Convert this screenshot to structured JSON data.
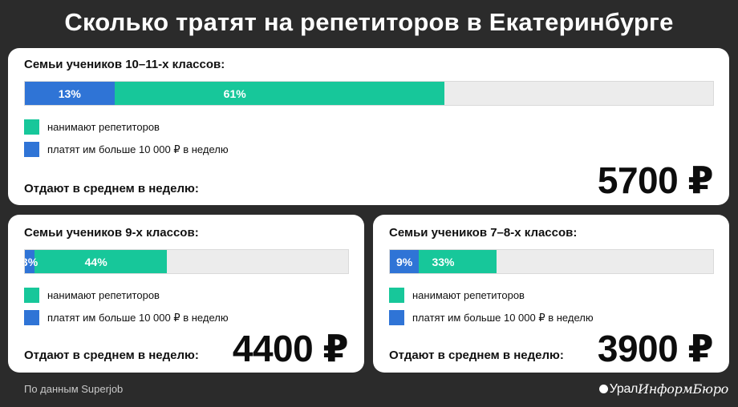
{
  "header": {
    "title": "Сколько тратят на репетиторов в Екатеринбурге"
  },
  "colors": {
    "hire": "#17c79a",
    "pay_more": "#2f74d6",
    "track": "#ececec"
  },
  "chart_data": {
    "type": "bar",
    "unit_percent": "%",
    "legend": {
      "hire_label": "нанимают репетиторов",
      "pay_more_label": "платят им больше 10 000 ₽ в неделю"
    },
    "avg_label": "Отдают в среднем в неделю:",
    "groups": [
      {
        "id": "g10_11",
        "title": "Семьи учеников 10–11-х классов:",
        "hire": 61,
        "pay_more": 13,
        "hire_text": "61%",
        "pay_more_text": "13%",
        "avg_text": "5700 ₽"
      },
      {
        "id": "g9",
        "title": "Семьи учеников 9-х классов:",
        "hire": 44,
        "pay_more": 3,
        "hire_text": "44%",
        "pay_more_text": "3%",
        "avg_text": "4400 ₽"
      },
      {
        "id": "g7_8",
        "title": "Семьи учеников 7–8-х классов:",
        "hire": 33,
        "pay_more": 9,
        "hire_text": "33%",
        "pay_more_text": "9%",
        "avg_text": "3900 ₽"
      }
    ]
  },
  "footer": {
    "source": "По данным Superjob",
    "brand_part1": "Урал",
    "brand_part2": "ИнформБюро"
  }
}
